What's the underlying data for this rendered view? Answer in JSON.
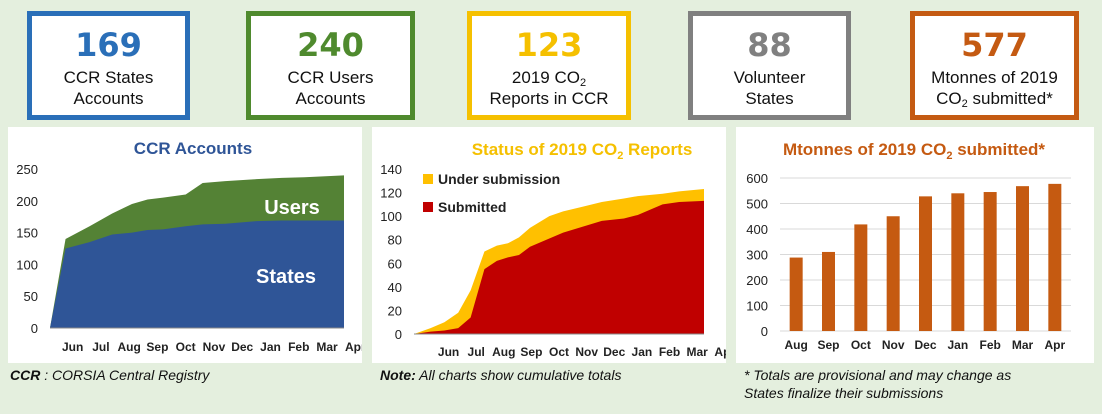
{
  "kpis": [
    {
      "value": "169",
      "line1": "CCR States",
      "line2": "Accounts",
      "color": "#2a6fb8"
    },
    {
      "value": "240",
      "line1": "CCR Users",
      "line2": "Accounts",
      "color": "#4f8a2e"
    },
    {
      "value": "123",
      "line1a": "2019 CO",
      "line1sub": "2",
      "line2": "Reports in CCR",
      "color": "#f5c000"
    },
    {
      "value": "88",
      "line1": "Volunteer",
      "line2": "States",
      "color": "#808080"
    },
    {
      "value": "577",
      "line1": "Mtonnes of 2019",
      "line2a": "CO",
      "line2sub": "2",
      "line2b": " submitted*",
      "color": "#c45a12"
    }
  ],
  "footnotes": {
    "left_bold": "CCR",
    "left_rest": " : CORSIA Central Registry",
    "middle_bold": "Note:",
    "middle_rest": " All charts show cumulative totals",
    "right_line1": "* Totals are provisional and may change as",
    "right_line2": "States finalize their submissions"
  },
  "chart_data": [
    {
      "type": "area",
      "title": "CCR Accounts",
      "categories": [
        "Jun",
        "Jul",
        "Aug",
        "Sep",
        "Oct",
        "Nov",
        "Dec",
        "Jan",
        "Feb",
        "Mar",
        "Apr"
      ],
      "ylim": [
        0,
        250
      ],
      "yticks": [
        0,
        50,
        100,
        150,
        200,
        250
      ],
      "x": [
        0,
        0.55,
        1.4,
        2.2,
        2.9,
        3.45,
        4.0,
        4.8,
        5.4,
        6.2,
        7.3,
        8.2,
        9.0,
        10.4
      ],
      "series": [
        {
          "name": "States",
          "color": "#2f5597",
          "values": [
            0,
            125,
            135,
            147,
            150,
            154,
            155,
            160,
            163,
            164,
            168,
            169,
            169,
            169
          ]
        },
        {
          "name": "Users",
          "color": "#548235",
          "values": [
            0,
            140,
            160,
            180,
            195,
            202,
            205,
            210,
            228,
            231,
            234,
            236,
            237,
            240
          ]
        }
      ],
      "series_labels": [
        {
          "text": "Users",
          "series": "Users"
        },
        {
          "text": "States",
          "series": "States"
        }
      ]
    },
    {
      "type": "area",
      "title_main": "Status of 2019 CO",
      "title_sub": "2",
      "title_end": " Reports",
      "categories": [
        "Jun",
        "Jul",
        "Aug",
        "Sep",
        "Oct",
        "Nov",
        "Dec",
        "Jan",
        "Feb",
        "Mar",
        "Apr"
      ],
      "ylim": [
        0,
        140
      ],
      "yticks": [
        0,
        20,
        40,
        60,
        80,
        100,
        120,
        140
      ],
      "x": [
        -0.6,
        0,
        0.5,
        1.0,
        1.45,
        1.95,
        2.4,
        2.8,
        3.2,
        3.6,
        4.3,
        4.8,
        5.5,
        6.2,
        7.0,
        7.5,
        8.4,
        9.0,
        9.9
      ],
      "series": [
        {
          "name": "Submitted",
          "color": "#c00000",
          "values": [
            0,
            2,
            3,
            5,
            14,
            55,
            62,
            65,
            67,
            74,
            81,
            86,
            91,
            96,
            98,
            101,
            110,
            112,
            113
          ]
        },
        {
          "name": "Under submission",
          "color": "#ffc000",
          "values": [
            0,
            5,
            10,
            18,
            37,
            70,
            75,
            77,
            82,
            90,
            100,
            104,
            108,
            112,
            115,
            117,
            119,
            121,
            123
          ]
        }
      ],
      "legend": [
        "Under submission",
        "Submitted"
      ]
    },
    {
      "type": "bar",
      "title_main": "Mtonnes of 2019 CO",
      "title_sub": "2",
      "title_end": " submitted*",
      "categories": [
        "Aug",
        "Sep",
        "Oct",
        "Nov",
        "Dec",
        "Jan",
        "Feb",
        "Mar",
        "Apr"
      ],
      "values": [
        288,
        310,
        418,
        450,
        528,
        540,
        545,
        568,
        577
      ],
      "ylim": [
        0,
        600
      ],
      "yticks": [
        0,
        100,
        200,
        300,
        400,
        500,
        600
      ],
      "color": "#c55a11"
    }
  ]
}
